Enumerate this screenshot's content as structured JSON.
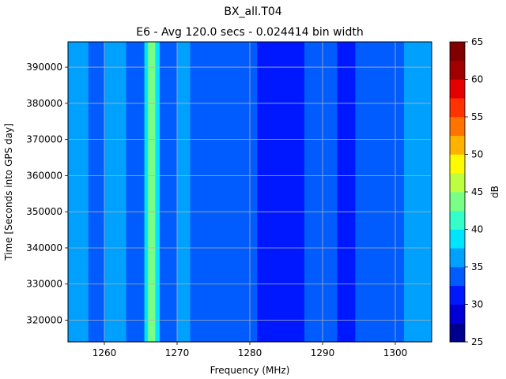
{
  "chart_data": {
    "type": "heatmap",
    "title": "BX_all.T04",
    "subtitle": "E6 - Avg 120.0 secs - 0.024414 bin width",
    "xlabel": "Frequency (MHz)",
    "ylabel": "Time [Seconds into GPS day]",
    "xlim": [
      1255,
      1305
    ],
    "ylim": [
      314000,
      397000
    ],
    "xticks": [
      1260,
      1270,
      1280,
      1290,
      1300
    ],
    "yticks": [
      320000,
      330000,
      340000,
      350000,
      360000,
      370000,
      380000,
      390000
    ],
    "grid": true,
    "colorbar": {
      "label": "dB",
      "levels": [
        25,
        27.5,
        30,
        32.5,
        35,
        37.5,
        40,
        42.5,
        45,
        47.5,
        50,
        52.5,
        55,
        57.5,
        60,
        62.5,
        65
      ],
      "ticks": [
        25,
        30,
        35,
        40,
        45,
        50,
        55,
        60,
        65
      ],
      "colors": [
        "#00008f",
        "#0000d6",
        "#0018ff",
        "#005cff",
        "#00a0ff",
        "#00e5ff",
        "#34ffc9",
        "#79ff85",
        "#bdff40",
        "#fffa00",
        "#ffb200",
        "#ff7300",
        "#ff3300",
        "#e40000",
        "#a00000",
        "#800000"
      ]
    },
    "frequency_profile": [
      {
        "from": 1255.0,
        "to": 1257.8,
        "level": 35
      },
      {
        "from": 1257.8,
        "to": 1260.0,
        "level": 34
      },
      {
        "from": 1260.0,
        "to": 1261.0,
        "level": 35
      },
      {
        "from": 1261.0,
        "to": 1263.0,
        "level": 37
      },
      {
        "from": 1263.0,
        "to": 1265.5,
        "level": 34
      },
      {
        "from": 1265.5,
        "to": 1266.0,
        "level": 38
      },
      {
        "from": 1266.0,
        "to": 1267.0,
        "level": 44
      },
      {
        "from": 1267.0,
        "to": 1267.6,
        "level": 38
      },
      {
        "from": 1267.6,
        "to": 1270.0,
        "level": 34
      },
      {
        "from": 1270.0,
        "to": 1271.8,
        "level": 35
      },
      {
        "from": 1271.8,
        "to": 1281.0,
        "level": 33
      },
      {
        "from": 1281.0,
        "to": 1287.5,
        "level": 31
      },
      {
        "from": 1287.5,
        "to": 1292.0,
        "level": 33
      },
      {
        "from": 1292.0,
        "to": 1293.0,
        "level": 31
      },
      {
        "from": 1293.0,
        "to": 1294.5,
        "level": 32
      },
      {
        "from": 1294.5,
        "to": 1301.2,
        "level": 33
      },
      {
        "from": 1301.2,
        "to": 1302.6,
        "level": 35
      },
      {
        "from": 1302.6,
        "to": 1305.0,
        "level": 35
      }
    ]
  }
}
